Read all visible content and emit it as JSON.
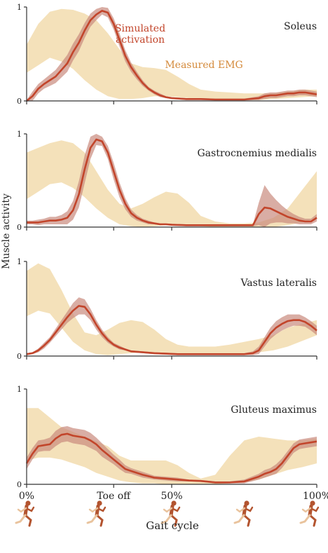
{
  "chart_data": {
    "type": "line",
    "ylabel": "Muscle activity",
    "xlabel": "Gait cycle",
    "x_ticks": [
      {
        "x": 0,
        "label": "0%"
      },
      {
        "x": 30,
        "label": "Toe off"
      },
      {
        "x": 50,
        "label": "50%"
      },
      {
        "x": 100,
        "label": "100%"
      }
    ],
    "ylim": [
      0,
      1
    ],
    "y_tick_labels": [
      "0",
      "1"
    ],
    "colors": {
      "simulated": "#c2452b",
      "simulated_band": "#c98a7e",
      "emg_band": "#f2dcae",
      "emg_label": "#d48a3b"
    },
    "legend": {
      "simulated": "Simulated\nactivation",
      "emg": "Measured EMG"
    },
    "panels": [
      {
        "name": "Soleus",
        "series": [
          {
            "label": "Simulated activation",
            "x": [
              0,
              2,
              4,
              6,
              8,
              10,
              12,
              14,
              16,
              18,
              20,
              22,
              24,
              26,
              28,
              30,
              32,
              34,
              36,
              38,
              40,
              42,
              44,
              46,
              48,
              50,
              55,
              60,
              65,
              70,
              75,
              80,
              82,
              84,
              86,
              88,
              90,
              92,
              94,
              96,
              98,
              100
            ],
            "y": [
              0,
              0.05,
              0.13,
              0.18,
              0.22,
              0.26,
              0.33,
              0.4,
              0.52,
              0.62,
              0.75,
              0.86,
              0.92,
              0.96,
              0.94,
              0.82,
              0.65,
              0.48,
              0.36,
              0.27,
              0.19,
              0.13,
              0.09,
              0.06,
              0.04,
              0.03,
              0.02,
              0.02,
              0.015,
              0.015,
              0.015,
              0.03,
              0.05,
              0.06,
              0.06,
              0.07,
              0.08,
              0.08,
              0.09,
              0.09,
              0.08,
              0.07
            ],
            "sd": [
              0.01,
              0.05,
              0.05,
              0.05,
              0.06,
              0.07,
              0.08,
              0.09,
              0.09,
              0.09,
              0.08,
              0.07,
              0.06,
              0.04,
              0.05,
              0.06,
              0.07,
              0.06,
              0.05,
              0.04,
              0.03,
              0.02,
              0.02,
              0.02,
              0.01,
              0.01,
              0.01,
              0.01,
              0.01,
              0.01,
              0.01,
              0.02,
              0.03,
              0.03,
              0.03,
              0.03,
              0.03,
              0.03,
              0.03,
              0.03,
              0.03,
              0.03
            ]
          },
          {
            "label": "Measured EMG",
            "x": [
              0,
              4,
              8,
              12,
              16,
              20,
              24,
              28,
              32,
              36,
              40,
              44,
              48,
              52,
              56,
              60,
              65,
              70,
              75,
              80,
              85,
              90,
              95,
              100
            ],
            "upper": [
              0.6,
              0.82,
              0.95,
              0.98,
              0.97,
              0.93,
              0.86,
              0.72,
              0.55,
              0.4,
              0.36,
              0.35,
              0.33,
              0.26,
              0.18,
              0.12,
              0.1,
              0.09,
              0.08,
              0.08,
              0.08,
              0.1,
              0.12,
              0.12
            ],
            "lower": [
              0.3,
              0.38,
              0.46,
              0.42,
              0.34,
              0.22,
              0.12,
              0.05,
              0.02,
              0.02,
              0.03,
              0.05,
              0.05,
              0.04,
              0.03,
              0.02,
              0.01,
              0.01,
              0.01,
              0.01,
              0.02,
              0.03,
              0.04,
              0.05
            ]
          }
        ],
        "show_legend": true
      },
      {
        "name": "Gastrocnemius medialis",
        "series": [
          {
            "label": "Simulated activation",
            "x": [
              0,
              2,
              4,
              6,
              8,
              10,
              12,
              14,
              16,
              18,
              20,
              22,
              24,
              26,
              28,
              30,
              32,
              34,
              36,
              38,
              40,
              42,
              44,
              46,
              48,
              50,
              55,
              60,
              65,
              70,
              75,
              78,
              80,
              82,
              84,
              86,
              88,
              90,
              92,
              94,
              96,
              98,
              100
            ],
            "y": [
              0.05,
              0.05,
              0.05,
              0.06,
              0.07,
              0.07,
              0.08,
              0.1,
              0.18,
              0.35,
              0.62,
              0.85,
              0.94,
              0.92,
              0.8,
              0.6,
              0.4,
              0.25,
              0.15,
              0.1,
              0.07,
              0.05,
              0.04,
              0.03,
              0.03,
              0.025,
              0.02,
              0.02,
              0.02,
              0.02,
              0.02,
              0.02,
              0.14,
              0.21,
              0.2,
              0.17,
              0.14,
              0.11,
              0.09,
              0.07,
              0.06,
              0.06,
              0.1
            ],
            "sd": [
              0.02,
              0.02,
              0.03,
              0.03,
              0.04,
              0.04,
              0.05,
              0.07,
              0.1,
              0.14,
              0.15,
              0.12,
              0.06,
              0.05,
              0.07,
              0.09,
              0.08,
              0.06,
              0.04,
              0.03,
              0.02,
              0.02,
              0.01,
              0.01,
              0.01,
              0.01,
              0.01,
              0.01,
              0.01,
              0.01,
              0.01,
              0.01,
              0.12,
              0.24,
              0.16,
              0.12,
              0.09,
              0.07,
              0.05,
              0.04,
              0.03,
              0.03,
              0.04
            ]
          },
          {
            "label": "Measured EMG",
            "x": [
              0,
              4,
              8,
              12,
              16,
              20,
              24,
              28,
              32,
              36,
              40,
              44,
              48,
              52,
              56,
              60,
              65,
              70,
              75,
              80,
              85,
              90,
              95,
              100
            ],
            "upper": [
              0.8,
              0.85,
              0.9,
              0.93,
              0.9,
              0.8,
              0.6,
              0.4,
              0.25,
              0.2,
              0.25,
              0.32,
              0.38,
              0.36,
              0.26,
              0.12,
              0.06,
              0.04,
              0.04,
              0.05,
              0.1,
              0.2,
              0.4,
              0.6
            ],
            "lower": [
              0.3,
              0.38,
              0.46,
              0.48,
              0.42,
              0.32,
              0.2,
              0.1,
              0.03,
              0.01,
              0.0,
              0.01,
              0.02,
              0.02,
              0.02,
              0.01,
              0.0,
              0.0,
              0.0,
              0.0,
              0.0,
              0.02,
              0.05,
              0.1
            ]
          }
        ],
        "show_legend": false
      },
      {
        "name": "Vastus lateralis",
        "series": [
          {
            "label": "Simulated activation",
            "x": [
              0,
              2,
              4,
              6,
              8,
              10,
              12,
              14,
              16,
              18,
              20,
              22,
              24,
              26,
              28,
              30,
              32,
              34,
              36,
              40,
              44,
              48,
              52,
              56,
              60,
              65,
              70,
              75,
              78,
              80,
              82,
              84,
              86,
              88,
              90,
              92,
              94,
              96,
              98,
              100
            ],
            "y": [
              0.02,
              0.03,
              0.06,
              0.11,
              0.17,
              0.25,
              0.33,
              0.41,
              0.48,
              0.53,
              0.52,
              0.44,
              0.33,
              0.24,
              0.17,
              0.12,
              0.09,
              0.07,
              0.05,
              0.04,
              0.03,
              0.025,
              0.02,
              0.02,
              0.02,
              0.02,
              0.02,
              0.02,
              0.03,
              0.06,
              0.15,
              0.24,
              0.3,
              0.34,
              0.37,
              0.38,
              0.38,
              0.36,
              0.32,
              0.27
            ],
            "sd": [
              0.01,
              0.01,
              0.02,
              0.03,
              0.03,
              0.04,
              0.05,
              0.06,
              0.08,
              0.09,
              0.08,
              0.06,
              0.05,
              0.04,
              0.03,
              0.02,
              0.02,
              0.01,
              0.01,
              0.01,
              0.01,
              0.01,
              0.01,
              0.01,
              0.01,
              0.01,
              0.01,
              0.01,
              0.02,
              0.04,
              0.05,
              0.06,
              0.07,
              0.07,
              0.07,
              0.06,
              0.06,
              0.05,
              0.05,
              0.05
            ]
          },
          {
            "label": "Measured EMG",
            "x": [
              0,
              4,
              8,
              12,
              16,
              20,
              24,
              28,
              32,
              36,
              40,
              44,
              48,
              52,
              56,
              60,
              65,
              70,
              75,
              80,
              85,
              90,
              95,
              100
            ],
            "upper": [
              0.9,
              0.98,
              0.92,
              0.7,
              0.45,
              0.25,
              0.22,
              0.28,
              0.35,
              0.38,
              0.36,
              0.28,
              0.18,
              0.12,
              0.1,
              0.1,
              0.1,
              0.12,
              0.15,
              0.18,
              0.22,
              0.3,
              0.34,
              0.38
            ],
            "lower": [
              0.42,
              0.48,
              0.45,
              0.3,
              0.15,
              0.06,
              0.02,
              0.01,
              0.02,
              0.03,
              0.04,
              0.03,
              0.02,
              0.02,
              0.02,
              0.02,
              0.02,
              0.02,
              0.03,
              0.04,
              0.06,
              0.1,
              0.16,
              0.22
            ]
          }
        ],
        "show_legend": false
      },
      {
        "name": "Gluteus maximus",
        "series": [
          {
            "label": "Simulated activation",
            "x": [
              0,
              2,
              4,
              6,
              8,
              10,
              12,
              14,
              16,
              18,
              20,
              22,
              24,
              26,
              28,
              30,
              32,
              34,
              36,
              40,
              44,
              48,
              52,
              56,
              60,
              65,
              70,
              75,
              80,
              82,
              84,
              86,
              88,
              90,
              92,
              94,
              96,
              98,
              100
            ],
            "y": [
              0.22,
              0.32,
              0.4,
              0.41,
              0.42,
              0.48,
              0.52,
              0.53,
              0.51,
              0.5,
              0.49,
              0.46,
              0.42,
              0.36,
              0.31,
              0.26,
              0.21,
              0.16,
              0.14,
              0.1,
              0.07,
              0.06,
              0.05,
              0.04,
              0.035,
              0.02,
              0.02,
              0.03,
              0.08,
              0.11,
              0.13,
              0.16,
              0.22,
              0.3,
              0.38,
              0.42,
              0.43,
              0.44,
              0.45
            ],
            "sd": [
              0.06,
              0.06,
              0.06,
              0.06,
              0.07,
              0.08,
              0.08,
              0.08,
              0.08,
              0.08,
              0.08,
              0.08,
              0.07,
              0.07,
              0.06,
              0.05,
              0.05,
              0.04,
              0.03,
              0.03,
              0.02,
              0.02,
              0.02,
              0.01,
              0.01,
              0.01,
              0.01,
              0.02,
              0.03,
              0.04,
              0.04,
              0.05,
              0.05,
              0.05,
              0.05,
              0.05,
              0.05,
              0.05,
              0.05
            ]
          },
          {
            "label": "Measured EMG",
            "x": [
              0,
              4,
              8,
              12,
              16,
              20,
              24,
              28,
              32,
              36,
              40,
              44,
              48,
              52,
              56,
              60,
              65,
              70,
              75,
              80,
              85,
              90,
              95,
              100
            ],
            "upper": [
              0.8,
              0.8,
              0.7,
              0.6,
              0.55,
              0.5,
              0.45,
              0.4,
              0.3,
              0.25,
              0.25,
              0.25,
              0.25,
              0.2,
              0.12,
              0.06,
              0.1,
              0.3,
              0.46,
              0.5,
              0.48,
              0.46,
              0.46,
              0.48
            ],
            "lower": [
              0.25,
              0.28,
              0.28,
              0.26,
              0.22,
              0.18,
              0.12,
              0.08,
              0.04,
              0.02,
              0.01,
              0.01,
              0.0,
              0.0,
              0.0,
              0.0,
              0.0,
              0.01,
              0.02,
              0.05,
              0.1,
              0.15,
              0.18,
              0.22
            ]
          }
        ],
        "show_legend": false
      }
    ]
  }
}
